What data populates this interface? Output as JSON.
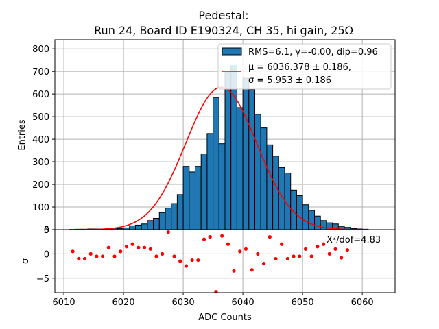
{
  "chart_data": [
    {
      "type": "bar",
      "panel": "histogram",
      "title_line1": "Pedestal:",
      "title_line2": "Run 24, Board ID E190324, CH 35, hi gain, 25Ω",
      "ylabel": "Entries",
      "xlim": [
        6008.5,
        6065.5
      ],
      "ylim": [
        0,
        840
      ],
      "yticks": [
        0,
        100,
        200,
        300,
        400,
        500,
        600,
        700,
        800
      ],
      "grid": true,
      "bar_color": "#1f77b4",
      "fit_color": "#ff0000",
      "legend_position": "top-right",
      "legend": {
        "hist_label": "RMS=6.1, γ=-0.00, dip=0.96",
        "fit_label_line1": "μ = 6036.378 ± 0.186,",
        "fit_label_line2": "σ = 5.953 ± 0.186"
      },
      "fit": {
        "mu": 6036.378,
        "sigma": 5.953,
        "amplitude": 630
      },
      "bins": {
        "start": 6011,
        "width": 1,
        "values": [
          1,
          2,
          2,
          3,
          3,
          3,
          4,
          6,
          5,
          8,
          17,
          20,
          25,
          40,
          50,
          75,
          95,
          115,
          155,
          280,
          255,
          280,
          335,
          425,
          585,
          380,
          695,
          725,
          540,
          670,
          620,
          510,
          450,
          375,
          325,
          275,
          250,
          175,
          150,
          110,
          85,
          60,
          40,
          30,
          25,
          15,
          10,
          5,
          3,
          2
        ]
      }
    },
    {
      "type": "scatter",
      "panel": "residuals",
      "xlabel": "ADC Counts",
      "ylabel": "σ",
      "xlim": [
        6008.5,
        6065.5
      ],
      "ylim": [
        -8,
        5
      ],
      "yticks": [
        -5,
        0,
        5
      ],
      "xticks": [
        6010,
        6020,
        6030,
        6040,
        6050,
        6060
      ],
      "grid": true,
      "point_color": "#ff0000",
      "annotation": "Χ²/dof=4.83",
      "x": [
        6011.5,
        6012.5,
        6013.5,
        6014.5,
        6015.5,
        6016.5,
        6017.5,
        6018.5,
        6019.5,
        6020.5,
        6021.5,
        6022.5,
        6023.5,
        6024.5,
        6025.5,
        6026.5,
        6027.5,
        6028.5,
        6029.5,
        6030.5,
        6031.5,
        6032.5,
        6033.5,
        6034.5,
        6035.5,
        6036.5,
        6037.5,
        6038.5,
        6039.5,
        6040.5,
        6041.5,
        6042.5,
        6043.5,
        6044.5,
        6045.5,
        6046.5,
        6047.5,
        6048.5,
        6049.5,
        6050.5,
        6051.5,
        6052.5,
        6053.5,
        6054.5,
        6055.5,
        6056.5,
        6057.5
      ],
      "y": [
        0.5,
        -1,
        -1,
        0,
        -0.5,
        -0.5,
        1.3,
        -0.5,
        0.5,
        1.5,
        2,
        1.3,
        1.3,
        1,
        -0.5,
        0,
        4.5,
        -0.5,
        -1.5,
        -2.5,
        -1.3,
        -1.3,
        3,
        3.5,
        -7.8,
        3.7,
        2,
        -3.5,
        0.5,
        1,
        -3.3,
        0,
        -2,
        3.5,
        -1,
        2,
        -1,
        -0.5,
        -0.5,
        1,
        -0.5,
        1.5,
        2,
        0,
        1,
        -0.8,
        0.8
      ]
    }
  ]
}
